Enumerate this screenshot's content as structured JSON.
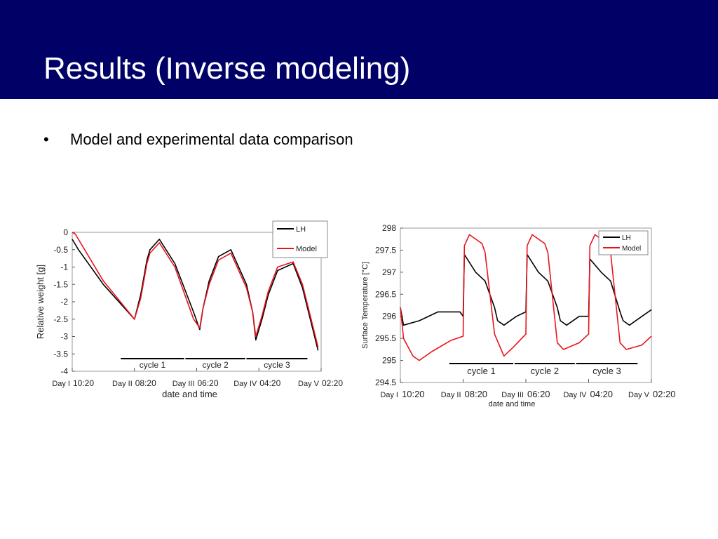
{
  "slide": {
    "title": "Results (Inverse modeling)",
    "bullet_symbol": "•",
    "bullet_text": "Model and experimental data comparison"
  },
  "colors": {
    "header_bg": "#000066",
    "lh": "#000000",
    "model": "#e8141b"
  },
  "chart_data": [
    {
      "type": "line",
      "ylabel": "Relative weight [g]",
      "xlabel": "date and time",
      "ylim": [
        -4,
        0
      ],
      "yticks": [
        "0",
        "-0.5",
        "-1",
        "-1.5",
        "-2",
        "-2.5",
        "-3",
        "-3.5",
        "-4"
      ],
      "xticks": [
        {
          "day": "Day I",
          "time": "10:20"
        },
        {
          "day": "Day II",
          "time": "08:20"
        },
        {
          "day": "Day III",
          "time": "06:20"
        },
        {
          "day": "Day IV",
          "time": "04:20"
        },
        {
          "day": "Day V",
          "time": "02:20"
        }
      ],
      "legend": [
        "LH",
        "Model"
      ],
      "legend_position": "top-right",
      "cycles": [
        "cycle 1",
        "cycle 2",
        "cycle 3"
      ],
      "series": [
        {
          "name": "LH",
          "x": [
            0,
            0.1,
            0.5,
            1.0,
            1.1,
            1.15,
            1.2,
            1.25,
            1.4,
            1.65,
            1.95,
            2.05,
            2.1,
            2.2,
            2.35,
            2.55,
            2.8,
            2.9,
            2.95,
            3.05,
            3.15,
            3.3,
            3.55,
            3.7,
            3.95
          ],
          "y": [
            -0.2,
            -0.5,
            -1.5,
            -2.5,
            -1.8,
            -1.3,
            -0.8,
            -0.5,
            -0.2,
            -0.9,
            -2.3,
            -2.8,
            -2.2,
            -1.4,
            -0.7,
            -0.5,
            -1.5,
            -2.3,
            -3.1,
            -2.5,
            -1.8,
            -1.1,
            -0.9,
            -1.6,
            -3.4
          ]
        },
        {
          "name": "Model",
          "x": [
            0,
            0.05,
            0.5,
            1.0,
            1.1,
            1.15,
            1.2,
            1.25,
            1.4,
            1.65,
            1.95,
            2.05,
            2.1,
            2.2,
            2.35,
            2.55,
            2.8,
            2.9,
            2.95,
            3.05,
            3.15,
            3.3,
            3.55,
            3.7,
            3.95
          ],
          "y": [
            0,
            -0.05,
            -1.4,
            -2.5,
            -1.9,
            -1.4,
            -0.9,
            -0.6,
            -0.3,
            -1.0,
            -2.5,
            -2.75,
            -2.2,
            -1.5,
            -0.8,
            -0.6,
            -1.6,
            -2.3,
            -3.0,
            -2.4,
            -1.7,
            -1.0,
            -0.85,
            -1.5,
            -3.3
          ]
        }
      ]
    },
    {
      "type": "line",
      "ylabel": "Surface Temperature [°C]",
      "xlabel": "date and time",
      "ylim": [
        294.5,
        298
      ],
      "yticks": [
        "298",
        "297.5",
        "297",
        "296.5",
        "296",
        "295.5",
        "295",
        "294.5"
      ],
      "xticks": [
        {
          "day": "Day I",
          "time": "10:20"
        },
        {
          "day": "Day II",
          "time": "08:20"
        },
        {
          "day": "Day III",
          "time": "06:20"
        },
        {
          "day": "Day IV",
          "time": "04:20"
        },
        {
          "day": "Day V",
          "time": "02:20"
        }
      ],
      "legend": [
        "LH",
        "Model"
      ],
      "legend_position": "top-right",
      "cycles": [
        "cycle 1",
        "cycle 2",
        "cycle 3"
      ],
      "series": [
        {
          "name": "LH",
          "x": [
            0,
            0.05,
            0.3,
            0.6,
            0.95,
            1.0,
            1.02,
            1.2,
            1.35,
            1.5,
            1.55,
            1.65,
            1.85,
            2.0,
            2.02,
            2.2,
            2.35,
            2.5,
            2.55,
            2.65,
            2.85,
            2.98,
            3.0,
            3.02,
            3.2,
            3.35,
            3.5,
            3.55,
            3.65,
            3.85,
            4.0
          ],
          "y": [
            296.2,
            295.8,
            295.9,
            296.1,
            296.1,
            296.0,
            297.4,
            297.0,
            296.8,
            296.2,
            295.9,
            295.8,
            296.0,
            296.1,
            297.4,
            297.0,
            296.8,
            296.2,
            295.9,
            295.8,
            296.0,
            296.0,
            296.0,
            297.3,
            297.0,
            296.8,
            296.1,
            295.9,
            295.8,
            296.0,
            296.15
          ]
        },
        {
          "name": "Model",
          "x": [
            0,
            0.05,
            0.2,
            0.3,
            0.5,
            0.8,
            1.0,
            1.02,
            1.1,
            1.3,
            1.35,
            1.5,
            1.65,
            1.8,
            2.0,
            2.02,
            2.1,
            2.3,
            2.35,
            2.5,
            2.6,
            2.85,
            3.0,
            3.02,
            3.1,
            3.3,
            3.35,
            3.5,
            3.6,
            3.85,
            4.0
          ],
          "y": [
            296.2,
            295.5,
            295.1,
            295.0,
            295.2,
            295.45,
            295.55,
            297.6,
            297.85,
            297.65,
            297.45,
            295.6,
            295.1,
            295.3,
            295.6,
            297.6,
            297.85,
            297.65,
            297.45,
            295.4,
            295.25,
            295.4,
            295.6,
            297.6,
            297.85,
            297.65,
            297.45,
            295.4,
            295.25,
            295.35,
            295.55
          ]
        }
      ]
    }
  ]
}
